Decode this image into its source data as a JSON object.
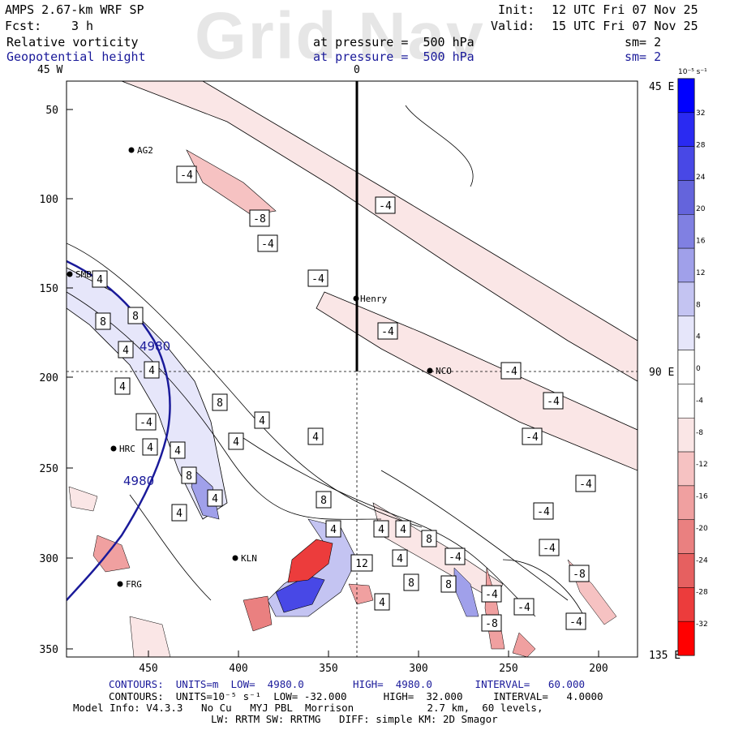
{
  "watermark": "Grid Nav",
  "header": {
    "model": "AMPS 2.67-km WRF SP",
    "init_label": "Init:",
    "init_value": "12 UTC Fri 07 Nov 25",
    "fcst_label": "Fcst:",
    "fcst_value": "3 h",
    "valid_label": "Valid:",
    "valid_value": "15 UTC Fri 07 Nov 25",
    "field1": "Relative vorticity",
    "field1_level": "at pressure =  500 hPa",
    "field1_sm": "sm= 2",
    "field2": "Geopotential height",
    "field2_level": "at pressure =  500 hPa",
    "field2_sm": "sm= 2"
  },
  "map": {
    "top_labels": [
      "45 W",
      "0"
    ],
    "right_labels": [
      "45 E",
      "90 E",
      "135 E"
    ],
    "y_ticks": [
      "50",
      "100",
      "150",
      "200",
      "250",
      "300",
      "350"
    ],
    "x_ticks": [
      "450",
      "400",
      "350",
      "300",
      "250",
      "200"
    ],
    "stations": [
      "AG2",
      "SMB",
      "HRC",
      "FRG",
      "KLN",
      "Henry",
      "NCO"
    ],
    "geopotential_labels": [
      "4980",
      "4980"
    ],
    "contour_labels_neg4": [
      "-4",
      "-4",
      "-4",
      "-4",
      "-4",
      "-4",
      "-4",
      "-4",
      "-4",
      "-4",
      "-4",
      "-4",
      "-4",
      "-4",
      "-4",
      "-4"
    ],
    "contour_labels_neg8": [
      "-8",
      "-8",
      "-8"
    ],
    "contour_labels_pos4": [
      "4",
      "4",
      "4",
      "4",
      "4",
      "4",
      "4",
      "4",
      "4",
      "4",
      "4",
      "4",
      "4",
      "4",
      "4",
      "4"
    ],
    "contour_labels_pos8": [
      "8",
      "8",
      "8",
      "8",
      "8",
      "8",
      "8",
      "8"
    ],
    "contour_labels_pos12": [
      "12"
    ]
  },
  "colorbar": {
    "unit": "10⁻⁵ s⁻¹",
    "labels": [
      "32",
      "28",
      "24",
      "20",
      "16",
      "12",
      "8",
      "4",
      "0",
      "-4",
      "-8",
      "-12",
      "-16",
      "-20",
      "-24",
      "-28",
      "-32"
    ],
    "colors": [
      "#0000ff",
      "#2a2af2",
      "#4848e6",
      "#6464dc",
      "#8080e2",
      "#a0a0ea",
      "#c4c4f2",
      "#e6e6fa",
      "#ffffff",
      "#ffffff",
      "#fae6e6",
      "#f6c2c2",
      "#f0a0a0",
      "#ea8080",
      "#e66060",
      "#ec3c3c",
      "#ff0000"
    ]
  },
  "footer": {
    "line1_blue": "CONTOURS:  UNITS=m  LOW=  4980.0        HIGH=  4980.0       INTERVAL=   60.000",
    "line2": "CONTOURS:  UNITS=10⁻⁵ s⁻¹  LOW= -32.000      HIGH=  32.000     INTERVAL=   4.0000",
    "line3": "Model Info: V4.3.3   No Cu   MYJ PBL  Morrison            2.7 km,  60 levels,",
    "line4": "LW: RRTM SW: RRTMG   DIFF: simple KM: 2D Smagor"
  }
}
